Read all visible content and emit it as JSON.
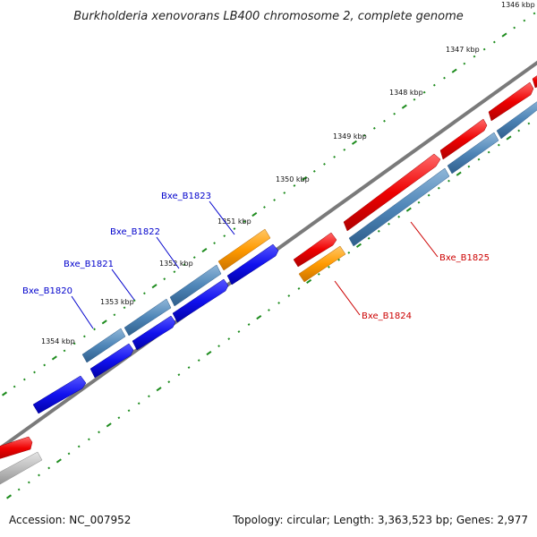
{
  "title": "Burkholderia xenovorans LB400 chromosome 2, complete genome",
  "accession": "Accession: NC_007952",
  "summary": "Topology: circular; Length: 3,363,523 bp; Genes: 2,977",
  "ruler_labels": [
    "1346 kbp",
    "1347 kbp",
    "1348 kbp",
    "1349 kbp",
    "1350 kbp",
    "1351 kbp",
    "1352 kbp",
    "1353 kbp",
    "1354 kbp"
  ],
  "gene_labels": [
    "Bxe_B1820",
    "Bxe_B1821",
    "Bxe_B1822",
    "Bxe_B1823",
    "Bxe_B1824",
    "Bxe_B1825"
  ],
  "colors": {
    "backbone": "#777777",
    "tick": "#1e8c1e",
    "cds_forward": "#ee0000",
    "cds_reverse": "#1111ee",
    "gene_steel": "#4f86b8",
    "orange": "#ff9a00",
    "grey": "#bbbbbb",
    "label_blue": "#0000cc",
    "label_red": "#cc0000"
  }
}
